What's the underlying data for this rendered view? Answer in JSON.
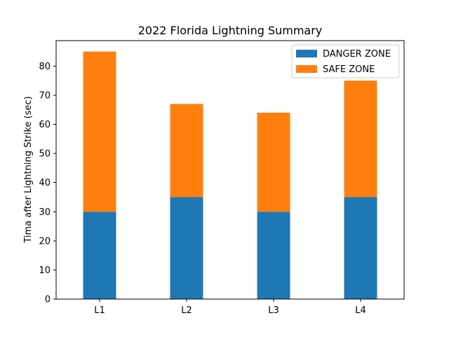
{
  "chart_data": {
    "type": "bar",
    "stacked": true,
    "title": "2022 Florida Lightning Summary",
    "xlabel": "",
    "ylabel": "Tima after Lightning Strike (sec)",
    "categories": [
      "L1",
      "L2",
      "L3",
      "L4"
    ],
    "series": [
      {
        "name": "DANGER ZONE",
        "color": "#1f77b4",
        "values": [
          30,
          35,
          30,
          35
        ]
      },
      {
        "name": "SAFE ZONE",
        "color": "#ff7f0e",
        "values": [
          55,
          32,
          34,
          40
        ]
      }
    ],
    "ylim": [
      0,
      88.75
    ],
    "yticks": [
      0,
      10,
      20,
      30,
      40,
      50,
      60,
      70,
      80
    ],
    "grid": false,
    "legend_position": "top-right"
  }
}
